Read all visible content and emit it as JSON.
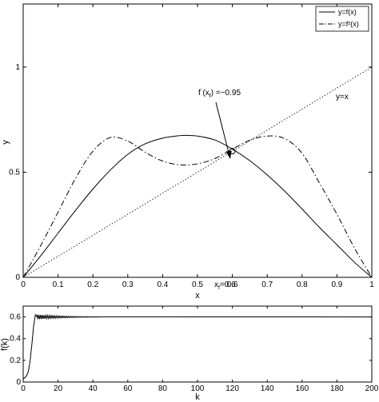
{
  "chart_data": [
    {
      "type": "line",
      "xlabel": "x",
      "ylabel": "y",
      "xlim": [
        0,
        1
      ],
      "ylim": [
        0,
        1.3
      ],
      "x_ticks": [
        "0",
        "0.1",
        "0.2",
        "0.3",
        "0.4",
        "0.5",
        "0.6",
        "0.7",
        "0.8",
        "0.9",
        "1"
      ],
      "y_ticks": [
        "0",
        "0.5",
        "1"
      ],
      "grid": false,
      "legend_placement": "top-right",
      "series": [
        {
          "name": "y=f(x)",
          "style": "solid",
          "x": [
            0,
            0.05,
            0.1,
            0.15,
            0.2,
            0.25,
            0.3,
            0.35,
            0.4,
            0.45,
            0.47,
            0.5,
            0.55,
            0.6,
            0.65,
            0.7,
            0.75,
            0.8,
            0.85,
            0.9,
            0.95,
            1
          ],
          "y": [
            0,
            0.102,
            0.21,
            0.318,
            0.42,
            0.51,
            0.585,
            0.635,
            0.662,
            0.674,
            0.675,
            0.672,
            0.653,
            0.61,
            0.555,
            0.487,
            0.41,
            0.325,
            0.237,
            0.155,
            0.072,
            0
          ]
        },
        {
          "name": "y=f²(x)",
          "style": "dashdot",
          "x": [
            0,
            0.05,
            0.1,
            0.15,
            0.2,
            0.25,
            0.3,
            0.35,
            0.4,
            0.45,
            0.5,
            0.55,
            0.6,
            0.65,
            0.7,
            0.75,
            0.8,
            0.85,
            0.9,
            0.95,
            1
          ],
          "y": [
            0,
            0.15,
            0.31,
            0.47,
            0.6,
            0.665,
            0.648,
            0.595,
            0.553,
            0.535,
            0.54,
            0.565,
            0.61,
            0.652,
            0.672,
            0.66,
            0.59,
            0.448,
            0.3,
            0.14,
            0
          ]
        },
        {
          "name": "y=x",
          "style": "dotted",
          "x": [
            0,
            1
          ],
          "y": [
            0,
            1
          ]
        }
      ],
      "fixed_point": {
        "x": 0.6,
        "y": 0.6
      },
      "annotations": {
        "slope_label": "f(x_f) =−0.95",
        "line_label": "y=x",
        "fixed_point_label": "x_f=0.6"
      }
    },
    {
      "type": "line",
      "xlabel": "k",
      "ylabel": "f(k)",
      "xlim": [
        0,
        200
      ],
      "ylim": [
        0,
        0.7
      ],
      "x_ticks": [
        "0",
        "20",
        "40",
        "60",
        "80",
        "100",
        "120",
        "140",
        "160",
        "180",
        "200"
      ],
      "y_ticks": [
        "0",
        "0.2",
        "0.4",
        "0.6"
      ],
      "grid": false,
      "series": [
        {
          "style": "solid",
          "description": "rises from ~0.03 at k=0 to ~0.6 by k≈8, damped oscillation around 0.6 until k≈45, then flat at 0.6",
          "x": [
            0,
            1,
            2,
            3,
            4,
            5,
            6,
            7,
            8,
            45,
            200
          ],
          "y": [
            0.03,
            0.04,
            0.06,
            0.1,
            0.2,
            0.35,
            0.52,
            0.62,
            0.6,
            0.6,
            0.6
          ]
        }
      ]
    }
  ]
}
